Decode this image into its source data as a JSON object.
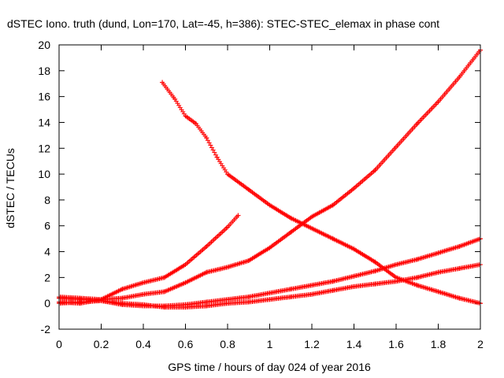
{
  "chart_data": {
    "type": "scatter",
    "title": "dSTEC Iono. truth (dund, Lon=170, Lat=-45, h=386): STEC-STEC_elemax in phase cont",
    "xlabel": "GPS time / hours of day 024 of year 2016",
    "ylabel": "dSTEC  / TECUs",
    "xlim": [
      0,
      2
    ],
    "ylim": [
      -2,
      20
    ],
    "xticks": [
      0,
      0.2,
      0.4,
      0.6,
      0.8,
      1,
      1.2,
      1.4,
      1.6,
      1.8,
      2
    ],
    "xtick_labels": [
      "0",
      "0.2",
      "0.4",
      "0.6",
      "0.8",
      "1",
      "1.2",
      "1.4",
      "1.6",
      "1.8",
      "2"
    ],
    "yticks": [
      -2,
      0,
      2,
      4,
      6,
      8,
      10,
      12,
      14,
      16,
      18,
      20
    ],
    "ytick_labels": [
      "-2",
      "0",
      "2",
      "4",
      "6",
      "8",
      "10",
      "12",
      "14",
      "16",
      "18",
      "20"
    ],
    "grid": false,
    "legend": "none",
    "marker": "plus",
    "color": "#ff0000",
    "series": [
      {
        "x": [
          0,
          0.1,
          0.2,
          0.3,
          0.4,
          0.5,
          0.6,
          0.7,
          0.8,
          0.9,
          1.0,
          1.1,
          1.2,
          1.3,
          1.4,
          1.5,
          1.6,
          1.7,
          1.8,
          1.9,
          2.0
        ],
        "y": [
          0.5,
          0.4,
          0.3,
          0.4,
          0.7,
          0.9,
          1.6,
          2.4,
          2.8,
          3.3,
          4.3,
          5.5,
          6.7,
          7.6,
          8.9,
          10.3,
          12.1,
          13.9,
          15.6,
          17.5,
          19.6
        ]
      },
      {
        "x": [
          0,
          0.1,
          0.2,
          0.3,
          0.4,
          0.5,
          0.6,
          0.7,
          0.8,
          0.85
        ],
        "y": [
          0.1,
          0.0,
          0.3,
          1.1,
          1.6,
          2.0,
          3.0,
          4.4,
          5.9,
          6.8
        ]
      },
      {
        "x": [
          0.49,
          0.55,
          0.6,
          0.65,
          0.7,
          0.75,
          0.8,
          0.9,
          1.0,
          1.1,
          1.2,
          1.3,
          1.4,
          1.5,
          1.6,
          1.7,
          1.8,
          1.9,
          2.0
        ],
        "y": [
          17.1,
          15.8,
          14.5,
          13.9,
          12.8,
          11.3,
          10.0,
          8.8,
          7.6,
          6.6,
          5.8,
          5.0,
          4.2,
          3.2,
          2.0,
          1.4,
          0.9,
          0.4,
          0.0
        ]
      },
      {
        "x": [
          0,
          0.1,
          0.2,
          0.3,
          0.4,
          0.5,
          0.6,
          0.7,
          0.8,
          0.9,
          1.0,
          1.1,
          1.2,
          1.3,
          1.4,
          1.5,
          1.6,
          1.7,
          1.8,
          1.9,
          2.0
        ],
        "y": [
          0.4,
          0.3,
          0.2,
          -0.1,
          -0.2,
          -0.2,
          -0.1,
          0.1,
          0.3,
          0.5,
          0.8,
          1.1,
          1.4,
          1.7,
          2.1,
          2.5,
          3.0,
          3.4,
          3.9,
          4.4,
          5.0
        ]
      },
      {
        "x": [
          0,
          0.1,
          0.2,
          0.3,
          0.4,
          0.5,
          0.6,
          0.7,
          0.8,
          0.9,
          1.0,
          1.1,
          1.2,
          1.3,
          1.4,
          1.5,
          1.6,
          1.7,
          1.8,
          1.9,
          2.0
        ],
        "y": [
          0.0,
          0.1,
          0.2,
          0.0,
          -0.1,
          -0.3,
          -0.3,
          -0.2,
          0.0,
          0.1,
          0.3,
          0.5,
          0.7,
          1.0,
          1.3,
          1.5,
          1.7,
          2.0,
          2.4,
          2.7,
          3.0
        ]
      }
    ]
  }
}
